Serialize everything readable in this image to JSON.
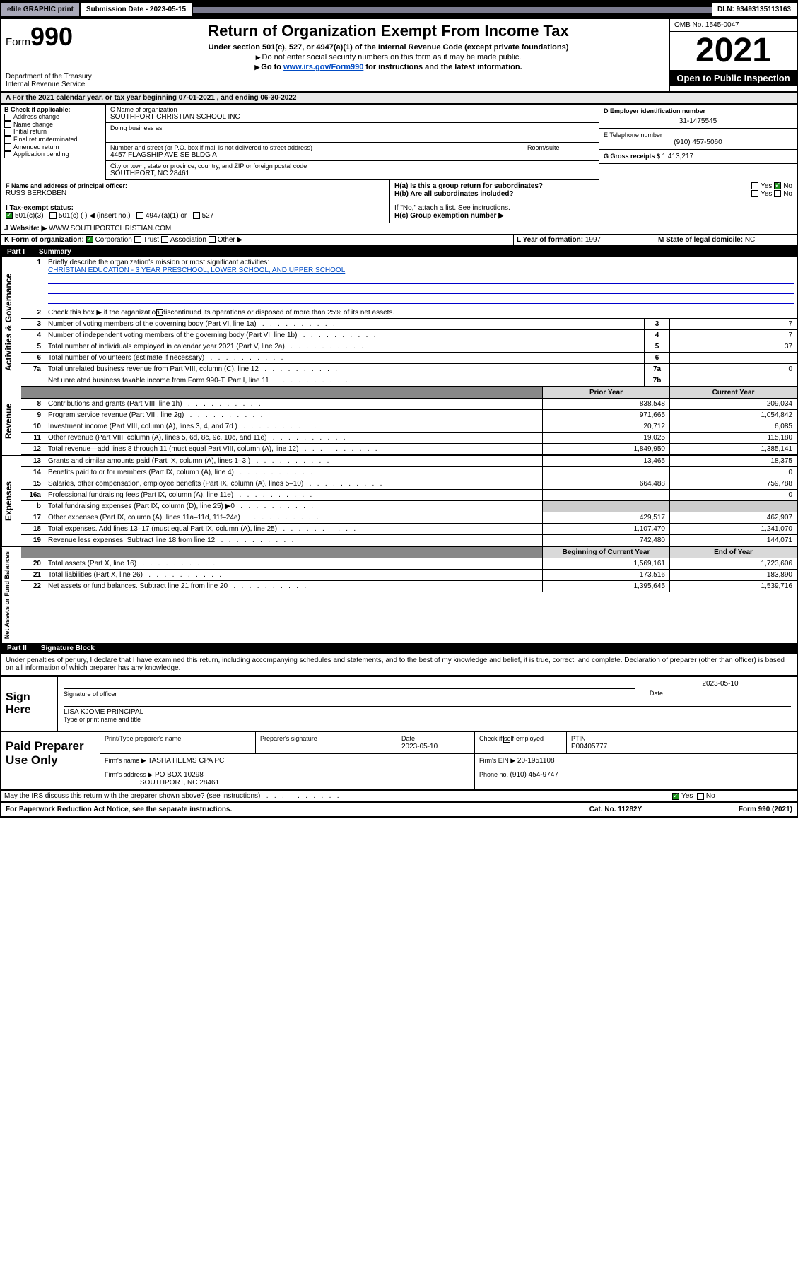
{
  "topbar": {
    "efile": "efile GRAPHIC print",
    "submission": "Submission Date - 2023-05-15",
    "dln": "DLN: 93493135113163"
  },
  "header": {
    "form_prefix": "Form",
    "form_num": "990",
    "dept": "Department of the Treasury",
    "irs": "Internal Revenue Service",
    "title": "Return of Organization Exempt From Income Tax",
    "subtitle": "Under section 501(c), 527, or 4947(a)(1) of the Internal Revenue Code (except private foundations)",
    "note1": "Do not enter social security numbers on this form as it may be made public.",
    "note2_pre": "Go to ",
    "note2_link": "www.irs.gov/Form990",
    "note2_post": " for instructions and the latest information.",
    "omb": "OMB No. 1545-0047",
    "year": "2021",
    "open": "Open to Public Inspection"
  },
  "period": {
    "a_label": "A For the 2021 calendar year, or tax year beginning ",
    "begin": "07-01-2021",
    "mid": " , and ending ",
    "end": "06-30-2022"
  },
  "b": {
    "label": "B Check if applicable:",
    "opts": [
      "Address change",
      "Name change",
      "Initial return",
      "Final return/terminated",
      "Amended return",
      "Application pending"
    ]
  },
  "c": {
    "name_label": "C Name of organization",
    "name": "SOUTHPORT CHRISTIAN SCHOOL INC",
    "dba_label": "Doing business as",
    "addr_label": "Number and street (or P.O. box if mail is not delivered to street address)",
    "room_label": "Room/suite",
    "addr": "4457 FLAGSHIP AVE SE BLDG A",
    "city_label": "City or town, state or province, country, and ZIP or foreign postal code",
    "city": "SOUTHPORT, NC  28461"
  },
  "d": {
    "label": "D Employer identification number",
    "value": "31-1475545"
  },
  "e": {
    "label": "E Telephone number",
    "value": "(910) 457-5060"
  },
  "g": {
    "label": "G Gross receipts $ ",
    "value": "1,413,217"
  },
  "f": {
    "label": "F Name and address of principal officer:",
    "name": "RUSS BERKOBEN"
  },
  "ha": {
    "label": "H(a)  Is this a group return for subordinates?",
    "yes": "Yes",
    "no": "No"
  },
  "hb": {
    "label": "H(b)  Are all subordinates included?",
    "yes": "Yes",
    "no": "No",
    "note": "If \"No,\" attach a list. See instructions."
  },
  "hc": {
    "label": "H(c)  Group exemption number ▶"
  },
  "i": {
    "label": "I   Tax-exempt status:",
    "opts": [
      "501(c)(3)",
      "501(c) (  ) ◀ (insert no.)",
      "4947(a)(1) or",
      "527"
    ]
  },
  "j": {
    "label": "J   Website: ▶",
    "value": "WWW.SOUTHPORTCHRISTIAN.COM"
  },
  "k": {
    "label": "K Form of organization:",
    "opts": [
      "Corporation",
      "Trust",
      "Association",
      "Other ▶"
    ]
  },
  "l": {
    "label": "L Year of formation: ",
    "value": "1997"
  },
  "m": {
    "label": "M State of legal domicile: ",
    "value": "NC"
  },
  "part1": {
    "num": "Part I",
    "title": "Summary"
  },
  "sides": {
    "gov": "Activities & Governance",
    "rev": "Revenue",
    "exp": "Expenses",
    "net": "Net Assets or Fund Balances"
  },
  "summary": {
    "l1_label": "Briefly describe the organization's mission or most significant activities:",
    "l1_text": "CHRISTIAN EDUCATION - 3 YEAR PRESCHOOL, LOWER SCHOOL, AND UPPER SCHOOL",
    "l2": "Check this box ▶      if the organization discontinued its operations or disposed of more than 25% of its net assets.",
    "rows": [
      {
        "n": "3",
        "l": "Number of voting members of the governing body (Part VI, line 1a)",
        "b": "3",
        "v": "7"
      },
      {
        "n": "4",
        "l": "Number of independent voting members of the governing body (Part VI, line 1b)",
        "b": "4",
        "v": "7"
      },
      {
        "n": "5",
        "l": "Total number of individuals employed in calendar year 2021 (Part V, line 2a)",
        "b": "5",
        "v": "37"
      },
      {
        "n": "6",
        "l": "Total number of volunteers (estimate if necessary)",
        "b": "6",
        "v": ""
      },
      {
        "n": "7a",
        "l": "Total unrelated business revenue from Part VIII, column (C), line 12",
        "b": "7a",
        "v": "0"
      },
      {
        "n": "",
        "l": "Net unrelated business taxable income from Form 990-T, Part I, line 11",
        "b": "7b",
        "v": ""
      }
    ],
    "hdr_prior": "Prior Year",
    "hdr_curr": "Current Year",
    "rev": [
      {
        "n": "8",
        "l": "Contributions and grants (Part VIII, line 1h)",
        "p": "838,548",
        "c": "209,034"
      },
      {
        "n": "9",
        "l": "Program service revenue (Part VIII, line 2g)",
        "p": "971,665",
        "c": "1,054,842"
      },
      {
        "n": "10",
        "l": "Investment income (Part VIII, column (A), lines 3, 4, and 7d )",
        "p": "20,712",
        "c": "6,085"
      },
      {
        "n": "11",
        "l": "Other revenue (Part VIII, column (A), lines 5, 6d, 8c, 9c, 10c, and 11e)",
        "p": "19,025",
        "c": "115,180"
      },
      {
        "n": "12",
        "l": "Total revenue—add lines 8 through 11 (must equal Part VIII, column (A), line 12)",
        "p": "1,849,950",
        "c": "1,385,141"
      }
    ],
    "exp": [
      {
        "n": "13",
        "l": "Grants and similar amounts paid (Part IX, column (A), lines 1–3 )",
        "p": "13,465",
        "c": "18,375"
      },
      {
        "n": "14",
        "l": "Benefits paid to or for members (Part IX, column (A), line 4)",
        "p": "",
        "c": "0"
      },
      {
        "n": "15",
        "l": "Salaries, other compensation, employee benefits (Part IX, column (A), lines 5–10)",
        "p": "664,488",
        "c": "759,788"
      },
      {
        "n": "16a",
        "l": "Professional fundraising fees (Part IX, column (A), line 11e)",
        "p": "",
        "c": "0"
      },
      {
        "n": "b",
        "l": "Total fundraising expenses (Part IX, column (D), line 25) ▶0",
        "p": "",
        "c": "",
        "gray": true
      },
      {
        "n": "17",
        "l": "Other expenses (Part IX, column (A), lines 11a–11d, 11f–24e)",
        "p": "429,517",
        "c": "462,907"
      },
      {
        "n": "18",
        "l": "Total expenses. Add lines 13–17 (must equal Part IX, column (A), line 25)",
        "p": "1,107,470",
        "c": "1,241,070"
      },
      {
        "n": "19",
        "l": "Revenue less expenses. Subtract line 18 from line 12",
        "p": "742,480",
        "c": "144,071"
      }
    ],
    "hdr_begin": "Beginning of Current Year",
    "hdr_end": "End of Year",
    "net": [
      {
        "n": "20",
        "l": "Total assets (Part X, line 16)",
        "p": "1,569,161",
        "c": "1,723,606"
      },
      {
        "n": "21",
        "l": "Total liabilities (Part X, line 26)",
        "p": "173,516",
        "c": "183,890"
      },
      {
        "n": "22",
        "l": "Net assets or fund balances. Subtract line 21 from line 20",
        "p": "1,395,645",
        "c": "1,539,716"
      }
    ]
  },
  "part2": {
    "num": "Part II",
    "title": "Signature Block"
  },
  "perjury": "Under penalties of perjury, I declare that I have examined this return, including accompanying schedules and statements, and to the best of my knowledge and belief, it is true, correct, and complete. Declaration of preparer (other than officer) is based on all information of which preparer has any knowledge.",
  "sign": {
    "here": "Sign Here",
    "sig_label": "Signature of officer",
    "date_label": "Date",
    "date": "2023-05-10",
    "name": "LISA KJOME  PRINCIPAL",
    "name_label": "Type or print name and title"
  },
  "prep": {
    "label": "Paid Preparer Use Only",
    "h_name": "Print/Type preparer's name",
    "h_sig": "Preparer's signature",
    "h_date": "Date",
    "date": "2023-05-10",
    "check_label": "Check       if self-employed",
    "ptin_label": "PTIN",
    "ptin": "P00405777",
    "firm_name_label": "Firm's name    ▶",
    "firm_name": "TASHA HELMS CPA PC",
    "ein_label": "Firm's EIN ▶",
    "ein": "20-1951108",
    "addr_label": "Firm's address ▶",
    "addr1": "PO BOX 10298",
    "addr2": "SOUTHPORT, NC  28461",
    "phone_label": "Phone no. ",
    "phone": "(910) 454-9747"
  },
  "discuss": {
    "q": "May the IRS discuss this return with the preparer shown above? (see instructions)",
    "yes": "Yes",
    "no": "No"
  },
  "footer": {
    "left": "For Paperwork Reduction Act Notice, see the separate instructions.",
    "mid": "Cat. No. 11282Y",
    "right": "Form 990 (2021)"
  }
}
